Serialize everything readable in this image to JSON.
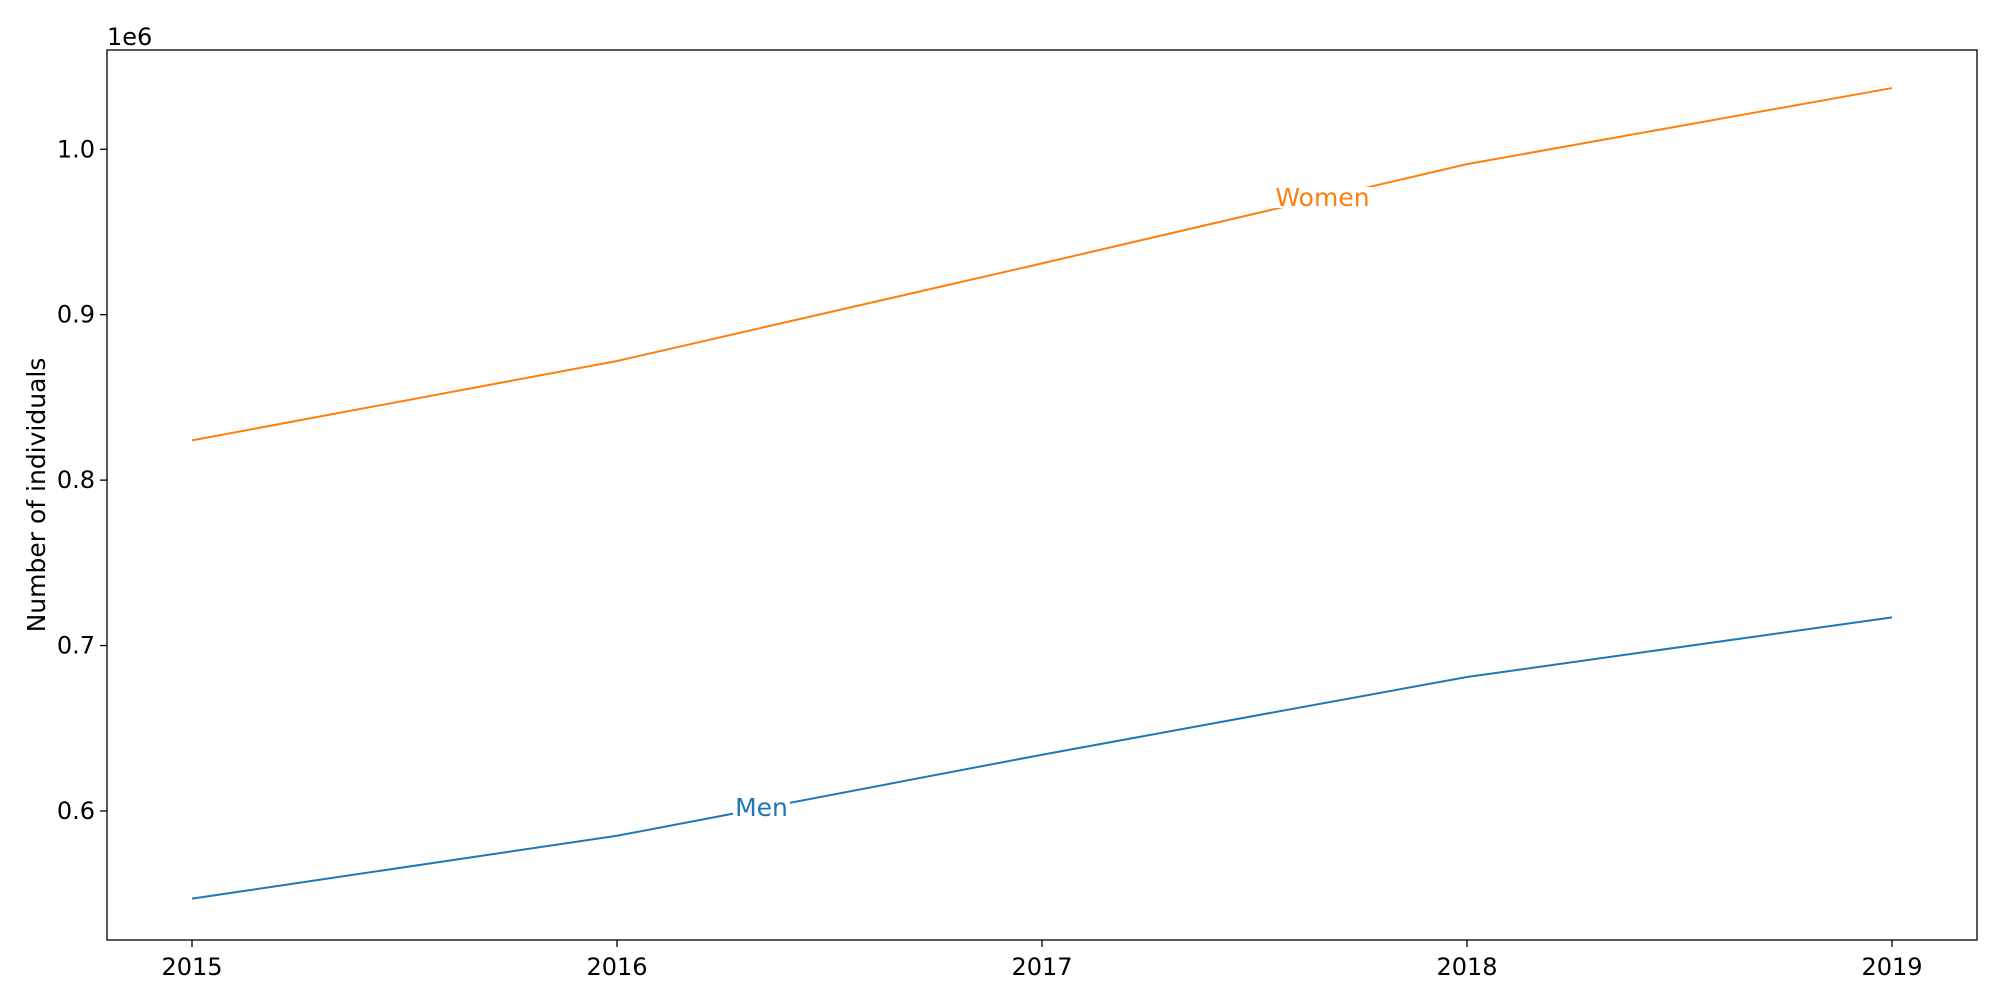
{
  "chart_data": {
    "type": "line",
    "title": "",
    "xlabel": "",
    "ylabel": "Number of individuals",
    "y_offset_label": "1e6",
    "x": [
      2015,
      2016,
      2017,
      2018,
      2019
    ],
    "x_ticks": [
      "2015",
      "2016",
      "2017",
      "2018",
      "2019"
    ],
    "xlim": [
      2014.8,
      2019.2
    ],
    "ylim": [
      0.522,
      1.06
    ],
    "y_ticks": [
      "0.6",
      "0.7",
      "0.8",
      "0.9",
      "1.0"
    ],
    "y_tick_values": [
      0.6,
      0.7,
      0.8,
      0.9,
      1.0
    ],
    "grid": false,
    "legend": "none (inline labels)",
    "series": [
      {
        "name": "Men",
        "color": "#1f77b4",
        "values": [
          0.547,
          0.585,
          0.634,
          0.681,
          0.717
        ],
        "label_at_x": 2016.34
      },
      {
        "name": "Women",
        "color": "#ff7f0e",
        "values": [
          0.824,
          0.872,
          0.931,
          0.991,
          1.037
        ],
        "label_at_x": 2017.66
      }
    ]
  }
}
